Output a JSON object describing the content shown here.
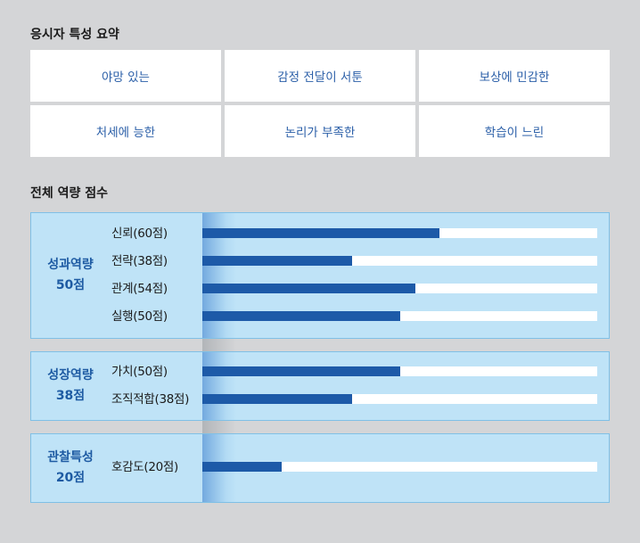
{
  "summary": {
    "title": "응시자 특성 요약",
    "traits": [
      "야망 있는",
      "감정 전달이 서툰",
      "보상에 민감한",
      "처세에 능한",
      "논리가 부족한",
      "학습이 느린"
    ]
  },
  "scores": {
    "title": "전체 역량 점수",
    "groups": [
      {
        "name": "성과역량",
        "score": "50점",
        "items": [
          {
            "label": "신뢰(60점)",
            "value": 60
          },
          {
            "label": "전략(38점)",
            "value": 38
          },
          {
            "label": "관계(54점)",
            "value": 54
          },
          {
            "label": "실행(50점)",
            "value": 50
          }
        ]
      },
      {
        "name": "성장역량",
        "score": "38점",
        "items": [
          {
            "label": "가치(50점)",
            "value": 50
          },
          {
            "label": "조직적합(38점)",
            "value": 38
          }
        ]
      },
      {
        "name": "관찰특성",
        "score": "20점",
        "items": [
          {
            "label": "호감도(20점)",
            "value": 20
          }
        ]
      }
    ],
    "max_score": 100
  },
  "colors": {
    "background": "#d4d5d7",
    "card": "#ffffff",
    "accent_text": "#2b5fa8",
    "group_bg": "#bfe3f7",
    "bar_fill": "#1d5aa8"
  }
}
